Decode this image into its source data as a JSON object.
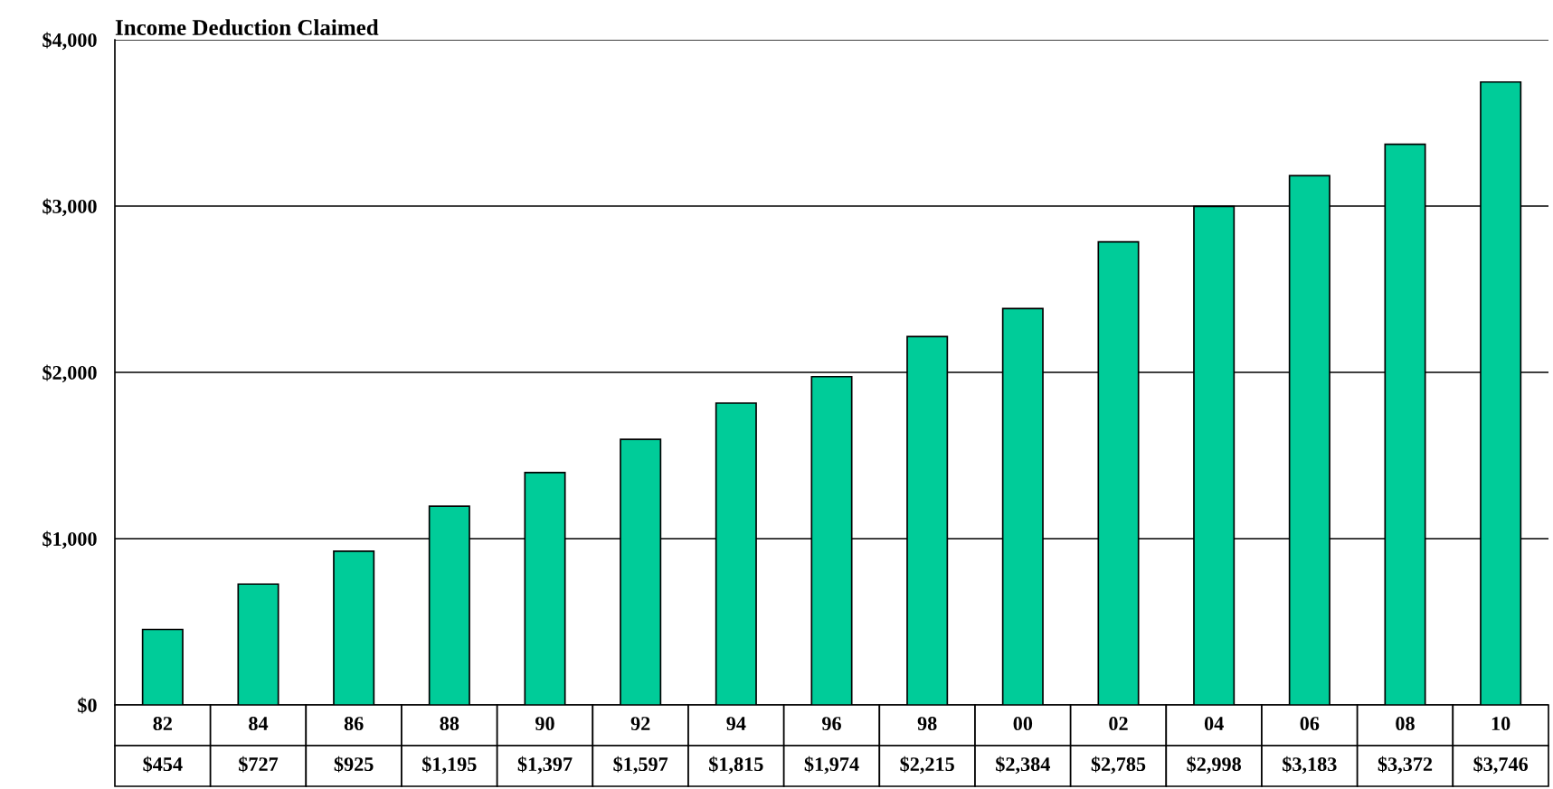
{
  "chart_data": {
    "type": "bar",
    "title": "Income Deduction Claimed",
    "categories": [
      "82",
      "84",
      "86",
      "88",
      "90",
      "92",
      "94",
      "96",
      "98",
      "00",
      "02",
      "04",
      "06",
      "08",
      "10"
    ],
    "values": [
      454,
      727,
      925,
      1195,
      1397,
      1597,
      1815,
      1974,
      2215,
      2384,
      2785,
      2998,
      3183,
      3372,
      3746
    ],
    "value_labels": [
      "$454",
      "$727",
      "$925",
      "$1,195",
      "$1,397",
      "$1,597",
      "$1,815",
      "$1,974",
      "$2,215",
      "$2,384",
      "$2,785",
      "$2,998",
      "$3,183",
      "$3,372",
      "$3,746"
    ],
    "color": "#00cc99",
    "ylim": [
      0,
      4000
    ],
    "yticks": [
      {
        "value": 0,
        "label": "$0"
      },
      {
        "value": 1000,
        "label": "$1,000"
      },
      {
        "value": 2000,
        "label": "$2,000"
      },
      {
        "value": 3000,
        "label": "$3,000"
      },
      {
        "value": 4000,
        "label": "$4,000"
      }
    ],
    "grid": "y",
    "legend": false
  }
}
